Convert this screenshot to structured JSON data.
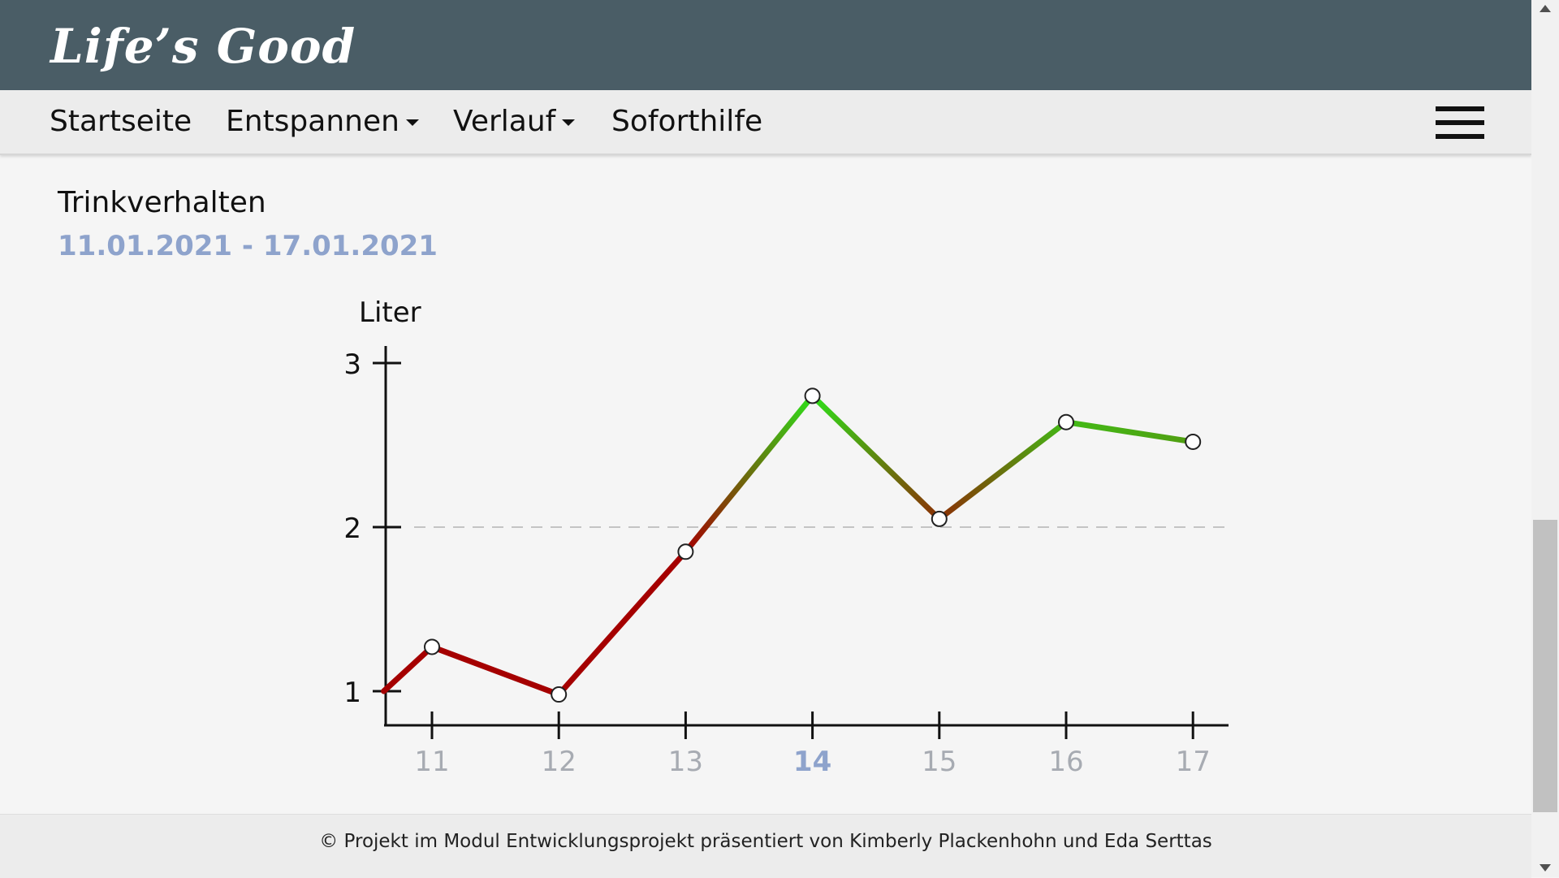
{
  "brand": "Life’s Good",
  "nav": {
    "items": [
      {
        "label": "Startseite",
        "dropdown": false
      },
      {
        "label": "Entspannen",
        "dropdown": true
      },
      {
        "label": "Verlauf",
        "dropdown": true
      },
      {
        "label": "Soforthilfe",
        "dropdown": false
      }
    ],
    "menu_icon": "hamburger-icon"
  },
  "page": {
    "title": "Trinkverhalten",
    "date_range": "11.01.2021 - 17.01.2021"
  },
  "chart_data": {
    "type": "line",
    "ylabel": "Liter",
    "xlabel": "",
    "title": "",
    "x": [
      11,
      12,
      13,
      14,
      15,
      16,
      17
    ],
    "x_tick_labels": [
      "11",
      "12",
      "13",
      "14",
      "15",
      "16",
      "17"
    ],
    "highlighted_x": 14,
    "series": [
      {
        "values": [
          1.27,
          0.98,
          1.85,
          2.8,
          2.05,
          2.64,
          2.52
        ]
      }
    ],
    "y_ticks": [
      1,
      2,
      3
    ],
    "ylim": [
      0.78,
      3.1
    ],
    "x_start": 10.62,
    "x_end": 17.33,
    "start_value": 1.0,
    "reference_line": 2,
    "colors": {
      "low": "#a50000",
      "high": "#2ee01a"
    },
    "grid": false
  },
  "footer": {
    "text": "© Projekt im Modul Entwicklungsprojekt präsentiert von Kimberly Plackenhohn und Eda Serttas"
  }
}
